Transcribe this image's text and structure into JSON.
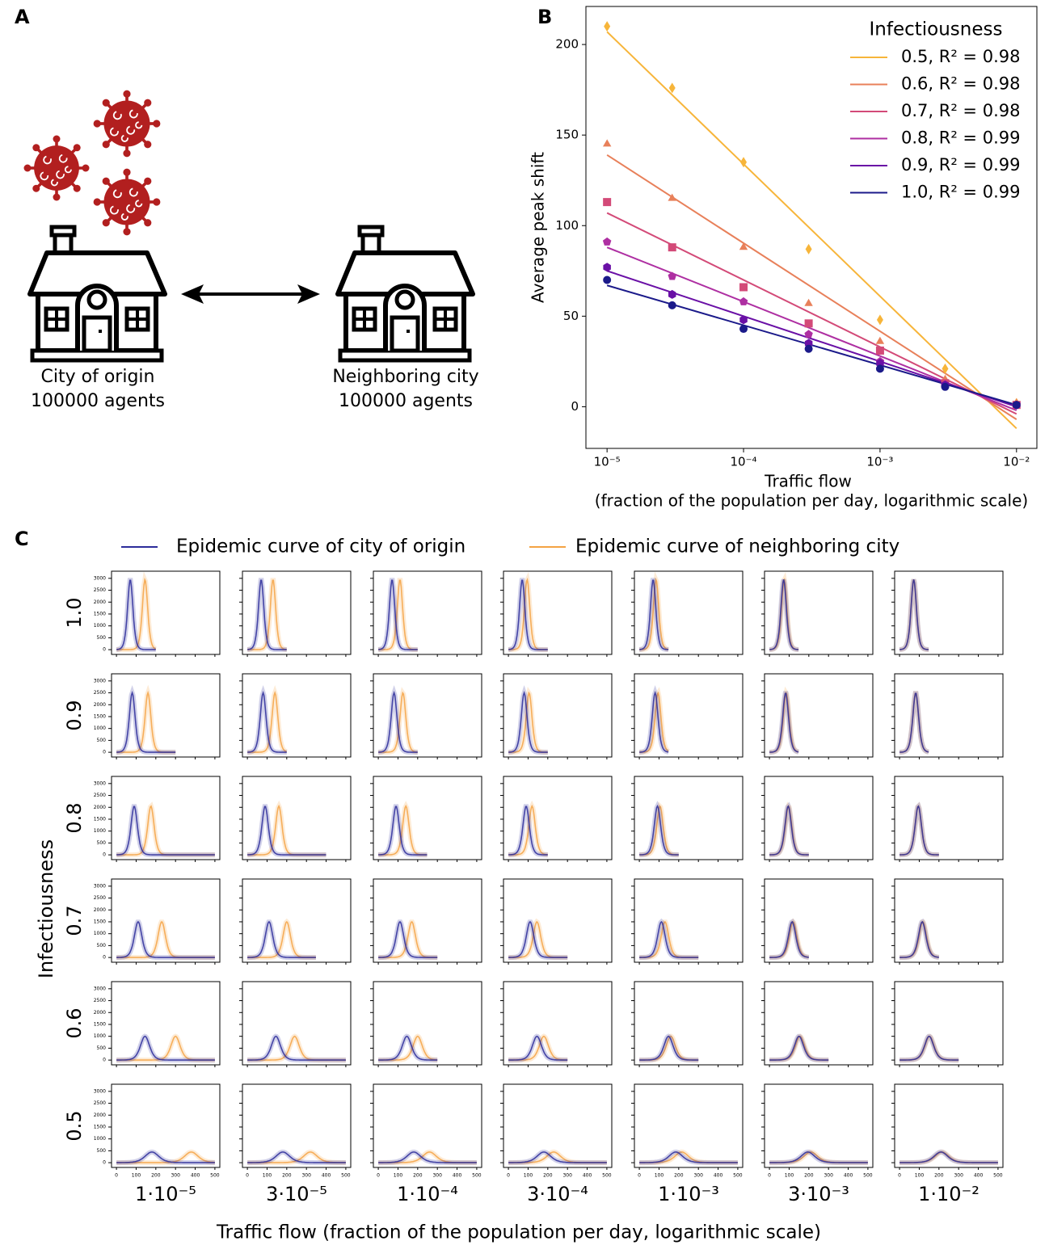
{
  "panel_labels": {
    "a": "A",
    "b": "B",
    "c": "C"
  },
  "panel_a": {
    "origin_name": "City of origin",
    "origin_agents": "100000 agents",
    "neighbor_name": "Neighboring city",
    "neighbor_agents": "100000 agents"
  },
  "chart_data": [
    {
      "type": "scatter-fit",
      "ylabel": "Average peak shift",
      "xlabel": "Traffic flow",
      "xlabel_note": "(fraction of the population per day, logarithmic scale)",
      "legend_title": "Infectiousness",
      "log_x": true,
      "x": [
        1e-05,
        3e-05,
        0.0001,
        0.0003,
        0.001,
        0.003,
        0.01
      ],
      "xlim": [
        7e-06,
        0.0141
      ],
      "ylim": [
        -23,
        221
      ],
      "xticks": [
        {
          "value": 1e-05,
          "label": "10⁻⁵"
        },
        {
          "value": 0.0001,
          "label": "10⁻⁴"
        },
        {
          "value": 0.001,
          "label": "10⁻³"
        },
        {
          "value": 0.01,
          "label": "10⁻²"
        }
      ],
      "yticks": [
        0,
        50,
        100,
        150,
        200
      ],
      "series": [
        {
          "name": "0.5, R² = 0.98",
          "color": "#f7b53a",
          "marker": "diamond",
          "values": [
            210,
            176,
            135,
            87,
            48,
            21,
            2
          ],
          "fit": [
            207,
            -12
          ]
        },
        {
          "name": "0.6, R² = 0.98",
          "color": "#e8805a",
          "marker": "triangle",
          "values": [
            145,
            115,
            88,
            57,
            36,
            15,
            2
          ],
          "fit": [
            139,
            -7
          ]
        },
        {
          "name": "0.7, R² = 0.98",
          "color": "#d34a78",
          "marker": "square",
          "values": [
            113,
            88,
            66,
            46,
            31,
            13,
            1
          ],
          "fit": [
            107,
            -4
          ]
        },
        {
          "name": "0.8, R² = 0.99",
          "color": "#ae2fa2",
          "marker": "pentagon",
          "values": [
            91,
            72,
            58,
            40,
            25,
            12,
            1
          ],
          "fit": [
            88,
            -2
          ]
        },
        {
          "name": "0.9, R² = 0.99",
          "color": "#6a10a6",
          "marker": "hexagon",
          "values": [
            77,
            62,
            48,
            35,
            24,
            12,
            1
          ],
          "fit": [
            75,
            0
          ]
        },
        {
          "name": "1.0, R² = 0.99",
          "color": "#1b1a8a",
          "marker": "circle",
          "values": [
            70,
            56,
            43,
            32,
            21,
            11,
            1
          ],
          "fit": [
            67,
            1
          ]
        }
      ]
    },
    {
      "type": "small-multiples-line",
      "ylabel": "Infectiousness",
      "xlabel": "Traffic flow (fraction of the population per day, logarithmic scale)",
      "series": [
        {
          "name": "Epidemic curve of city of origin",
          "color": "#2c2c9a"
        },
        {
          "name": "Epidemic curve of neighboring city",
          "color": "#f4a344"
        }
      ],
      "columns": [
        "1·10⁻⁵",
        "3·10⁻⁵",
        "1·10⁻⁴",
        "3·10⁻⁴",
        "1·10⁻³",
        "3·10⁻³",
        "1·10⁻²"
      ],
      "xlim": [
        -25,
        525
      ],
      "ylim": [
        -200,
        3300
      ],
      "xticks": [
        0,
        100,
        200,
        300,
        400,
        500
      ],
      "yticks": [
        0,
        500,
        1000,
        1500,
        2000,
        2500,
        3000
      ],
      "rows": [
        {
          "label": "1.0",
          "peak": 2950,
          "origin_peak_day": [
            70,
            70,
            70,
            70,
            70,
            72,
            72
          ],
          "neighbor_peak_day": [
            145,
            130,
            110,
            95,
            85,
            75,
            72
          ],
          "end_day": [
            200,
            200,
            200,
            200,
            150,
            150,
            150
          ]
        },
        {
          "label": "0.9",
          "peak": 2500,
          "origin_peak_day": [
            80,
            80,
            80,
            80,
            80,
            82,
            82
          ],
          "neighbor_peak_day": [
            160,
            140,
            125,
            105,
            95,
            85,
            82
          ],
          "end_day": [
            300,
            200,
            200,
            200,
            150,
            150,
            150
          ]
        },
        {
          "label": "0.8",
          "peak": 2050,
          "origin_peak_day": [
            90,
            90,
            90,
            90,
            92,
            95,
            95
          ],
          "neighbor_peak_day": [
            175,
            160,
            140,
            120,
            105,
            97,
            95
          ],
          "end_day": [
            500,
            400,
            250,
            200,
            200,
            200,
            200
          ]
        },
        {
          "label": "0.7",
          "peak": 1500,
          "origin_peak_day": [
            110,
            110,
            110,
            110,
            112,
            115,
            115
          ],
          "neighbor_peak_day": [
            230,
            200,
            170,
            145,
            130,
            120,
            118
          ],
          "end_day": [
            500,
            350,
            300,
            300,
            300,
            200,
            200
          ]
        },
        {
          "label": "0.6",
          "peak": 1000,
          "origin_peak_day": [
            145,
            145,
            145,
            145,
            148,
            150,
            150
          ],
          "neighbor_peak_day": [
            300,
            240,
            200,
            180,
            160,
            155,
            152
          ],
          "end_day": [
            500,
            500,
            300,
            300,
            300,
            300,
            300
          ]
        },
        {
          "label": "0.5",
          "peak": 450,
          "origin_peak_day": [
            180,
            180,
            180,
            180,
            185,
            195,
            210
          ],
          "neighbor_peak_day": [
            380,
            320,
            260,
            230,
            215,
            210,
            215
          ],
          "end_day": [
            500,
            500,
            500,
            500,
            500,
            500,
            500
          ]
        }
      ]
    }
  ]
}
